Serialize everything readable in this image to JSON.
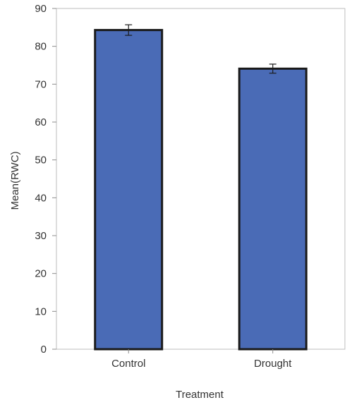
{
  "chart_data": {
    "type": "bar",
    "title": "",
    "xlabel": "Treatment",
    "ylabel": "Mean(RWC)",
    "categories": [
      "Control",
      "Drought"
    ],
    "values": [
      84.3,
      74.1
    ],
    "error": [
      1.4,
      1.2
    ],
    "ylim": [
      0,
      90
    ],
    "yticks": [
      "0",
      "10",
      "20",
      "30",
      "40",
      "50",
      "60",
      "70",
      "80",
      "90"
    ],
    "grid": false,
    "bar_color": "#4a6bb6",
    "bar_edge_color": "#1a1a1a"
  }
}
